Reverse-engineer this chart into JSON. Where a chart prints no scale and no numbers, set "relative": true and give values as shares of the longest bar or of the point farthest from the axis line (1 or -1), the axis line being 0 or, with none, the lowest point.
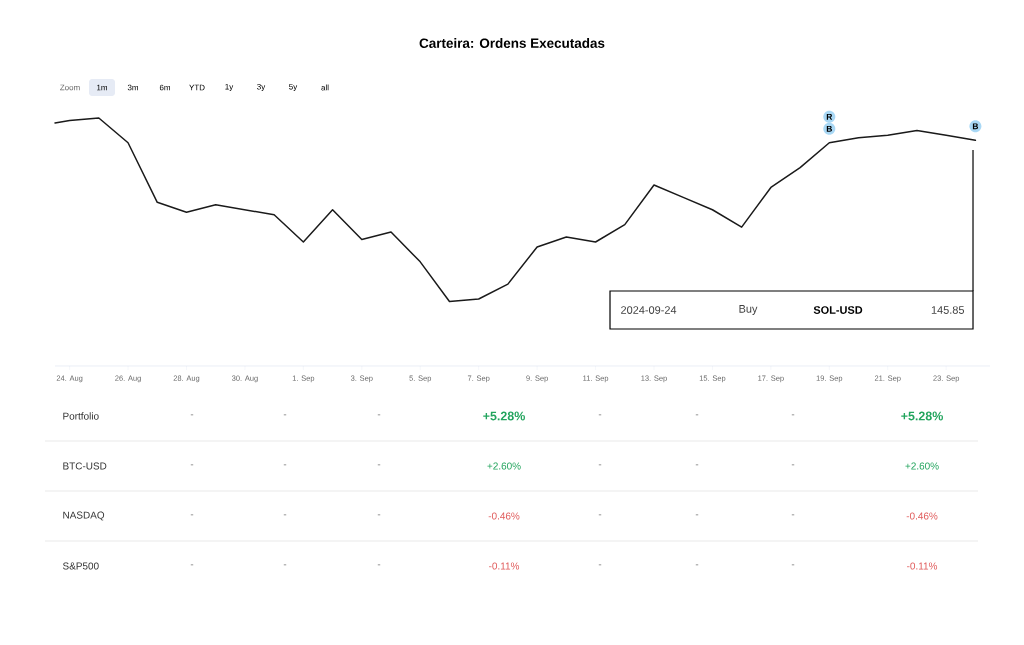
{
  "chart_data": {
    "type": "line",
    "title": "Carteira: Ordens Executadas",
    "relative": true,
    "color": "#1a1a1a",
    "x": [
      "2024-08-23T12:00",
      "2024-08-24",
      "2024-08-25",
      "2024-08-26",
      "2024-08-27",
      "2024-08-28",
      "2024-08-29",
      "2024-08-30",
      "2024-08-31",
      "2024-09-01",
      "2024-09-02",
      "2024-09-03",
      "2024-09-04",
      "2024-09-05",
      "2024-09-06",
      "2024-09-07",
      "2024-09-08",
      "2024-09-09",
      "2024-09-10",
      "2024-09-11",
      "2024-09-12",
      "2024-09-13",
      "2024-09-14",
      "2024-09-15",
      "2024-09-16",
      "2024-09-17",
      "2024-09-18",
      "2024-09-19",
      "2024-09-20",
      "2024-09-21",
      "2024-09-22",
      "2024-09-23",
      "2024-09-24"
    ],
    "values": [
      0.98,
      0.99,
      1.0,
      0.9,
      0.66,
      0.62,
      0.65,
      0.63,
      0.61,
      0.5,
      0.63,
      0.51,
      0.54,
      0.42,
      0.26,
      0.27,
      0.33,
      0.48,
      0.52,
      0.5,
      0.57,
      0.73,
      0.68,
      0.63,
      0.56,
      0.72,
      0.8,
      0.9,
      0.92,
      0.93,
      0.95,
      0.93,
      0.91
    ],
    "xlim": [
      "2024-08-23T12:00",
      "2024-09-24T12:00"
    ],
    "xticks": [
      {
        "value": "2024-08-24",
        "label": "24. Aug"
      },
      {
        "value": "2024-08-26",
        "label": "26. Aug"
      },
      {
        "value": "2024-08-28",
        "label": "28. Aug"
      },
      {
        "value": "2024-08-30",
        "label": "30. Aug"
      },
      {
        "value": "2024-09-01",
        "label": "1. Sep"
      },
      {
        "value": "2024-09-03",
        "label": "3. Sep"
      },
      {
        "value": "2024-09-05",
        "label": "5. Sep"
      },
      {
        "value": "2024-09-07",
        "label": "7. Sep"
      },
      {
        "value": "2024-09-09",
        "label": "9. Sep"
      },
      {
        "value": "2024-09-11",
        "label": "11. Sep"
      },
      {
        "value": "2024-09-13",
        "label": "13. Sep"
      },
      {
        "value": "2024-09-15",
        "label": "15. Sep"
      },
      {
        "value": "2024-09-17",
        "label": "17. Sep"
      },
      {
        "value": "2024-09-19",
        "label": "19. Sep"
      },
      {
        "value": "2024-09-21",
        "label": "21. Sep"
      },
      {
        "value": "2024-09-23",
        "label": "23. Sep"
      }
    ],
    "annotations": [
      "Zoom",
      "1m",
      "3m",
      "6m",
      "YTD",
      "1y",
      "3y",
      "5y",
      "all",
      {
        "text": "B",
        "x": "2024-09-19",
        "y": 0.9
      },
      "R",
      {
        "text": "B",
        "x": "2024-09-24",
        "y": 0.91
      },
      "2024-09-24",
      "Buy",
      "SOL-USD",
      "145.85",
      "Portfolio",
      "-",
      "-",
      "-",
      "+5.28%",
      "-",
      "-",
      "-",
      "+5.28%",
      "BTC-USD",
      "-",
      "-",
      "-",
      "+2.60%",
      "-",
      "-",
      "-",
      "+2.60%",
      "NASDAQ",
      "-",
      "-",
      "-",
      "-0.46%",
      "-",
      "-",
      "-",
      "-0.46%",
      "S&P500",
      "-",
      "-",
      "-",
      "-0.11%",
      "-",
      "-",
      "-",
      "-0.11%"
    ]
  }
}
